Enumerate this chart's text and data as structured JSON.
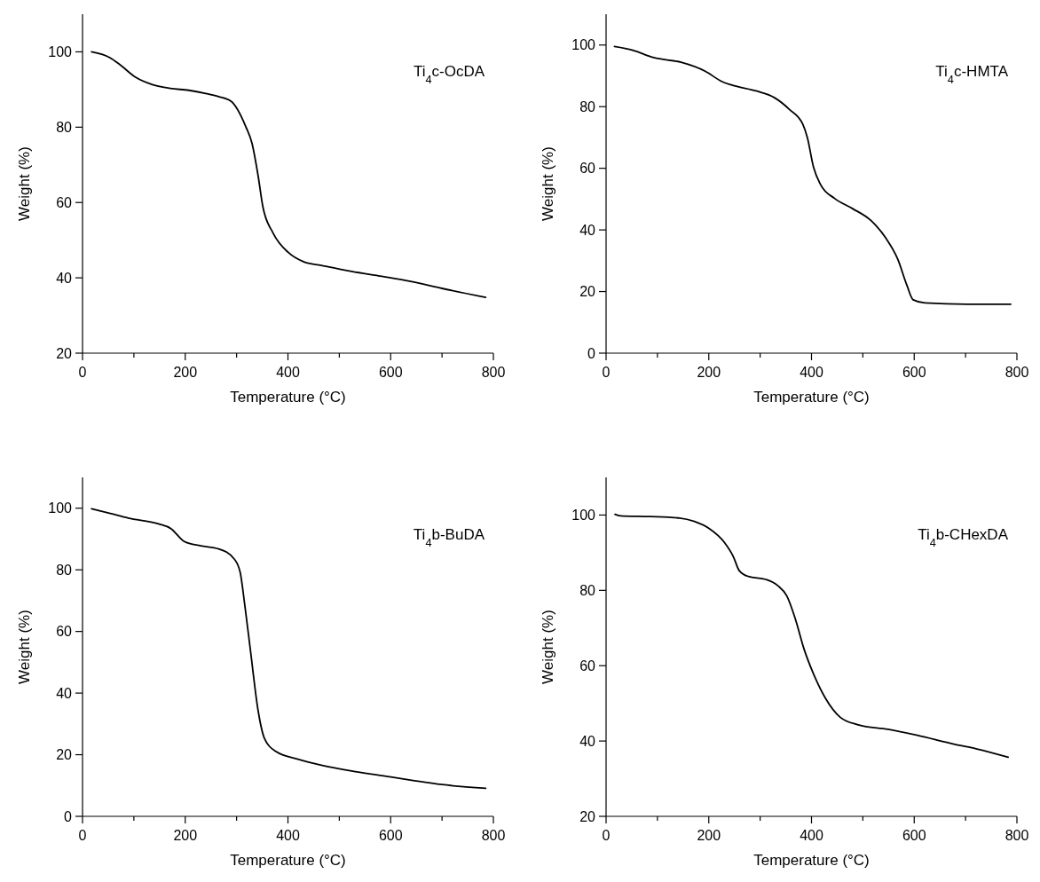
{
  "chart_data": [
    {
      "type": "line",
      "xlabel": "Temperature (°C)",
      "ylabel": "Weight (%)",
      "annotations": [
        "Ti$_{4}$c-OcDA"
      ],
      "xlim": [
        0,
        800
      ],
      "ylim": [
        20,
        110
      ],
      "xticks": [
        0,
        {
          "value": 100,
          "label": null
        },
        200,
        {
          "value": 300,
          "label": null
        },
        400,
        {
          "value": 500,
          "label": null
        },
        600,
        {
          "value": 700,
          "label": null
        },
        800
      ],
      "yticks": [
        20,
        40,
        60,
        80,
        100
      ],
      "series": [
        {
          "color": "#000000",
          "x": [
            17.6,
            54,
            71,
            104,
            136,
            171,
            207,
            242,
            265,
            289,
            318,
            330,
            342,
            351,
            371,
            401,
            430,
            465,
            524,
            583,
            641,
            700,
            785
          ],
          "values": [
            100,
            98.4,
            96.8,
            93.2,
            91.3,
            90.3,
            89.8,
            88.9,
            88.1,
            86.9,
            80.1,
            75.7,
            67,
            59,
            51.9,
            46.7,
            44.3,
            43.3,
            41.7,
            40.4,
            39,
            37.2,
            34.8
          ]
        }
      ]
    },
    {
      "type": "line",
      "xlabel": "Temperature (°C)",
      "ylabel": "Weight (%)",
      "annotations": [
        "Ti$_{4}$c-HMTA"
      ],
      "xlim": [
        0,
        800
      ],
      "ylim": [
        0,
        110
      ],
      "xticks": [
        0,
        {
          "value": 100,
          "label": null
        },
        200,
        {
          "value": 300,
          "label": null
        },
        400,
        {
          "value": 500,
          "label": null
        },
        600,
        {
          "value": 700,
          "label": null
        },
        800
      ],
      "yticks": [
        0,
        20,
        40,
        60,
        80,
        100
      ],
      "series": [
        {
          "color": "#000000",
          "x": [
            16.4,
            52,
            93,
            146,
            193,
            225,
            245,
            292,
            328,
            357,
            383,
            392,
            404,
            418,
            445,
            480,
            516,
            545,
            568,
            586,
            598,
            621,
            703,
            788
          ],
          "values": [
            99.5,
            98.3,
            95.9,
            94.4,
            91.5,
            88.2,
            87,
            85.1,
            82.9,
            79.1,
            74.3,
            69.9,
            60.3,
            54.6,
            50.2,
            46.9,
            43,
            37.3,
            30.5,
            21.9,
            17.3,
            16.3,
            15.9,
            15.9
          ]
        }
      ]
    },
    {
      "type": "line",
      "xlabel": "Temperature (°C)",
      "ylabel": "Weight (%)",
      "annotations": [
        "Ti$_{4}$b-BuDA"
      ],
      "xlim": [
        0,
        800
      ],
      "ylim": [
        0,
        110
      ],
      "xticks": [
        0,
        {
          "value": 100,
          "label": null
        },
        200,
        {
          "value": 300,
          "label": null
        },
        400,
        {
          "value": 500,
          "label": null
        },
        600,
        {
          "value": 700,
          "label": null
        },
        800
      ],
      "yticks": [
        0,
        20,
        40,
        60,
        80,
        100
      ],
      "series": [
        {
          "color": "#000000",
          "x": [
            17.6,
            54,
            89,
            148,
            172,
            198,
            230,
            265,
            295,
            307,
            316,
            327,
            342,
            354,
            377,
            418,
            465,
            524,
            583,
            641,
            700,
            785
          ],
          "values": [
            99.8,
            98.3,
            96.8,
            94.9,
            93.4,
            89.2,
            87.8,
            86.8,
            83.6,
            79.2,
            68.5,
            53.8,
            34.2,
            25.4,
            21,
            18.6,
            16.6,
            14.7,
            13.2,
            11.7,
            10.3,
            9.1
          ]
        }
      ]
    },
    {
      "type": "line",
      "xlabel": "Temperature (°C)",
      "ylabel": "Weight (%)",
      "annotations": [
        "Ti$_{4}$b-CHexDA"
      ],
      "xlim": [
        0,
        800
      ],
      "ylim": [
        20,
        110
      ],
      "xticks": [
        0,
        {
          "value": 100,
          "label": null
        },
        200,
        {
          "value": 300,
          "label": null
        },
        400,
        {
          "value": 500,
          "label": null
        },
        600,
        {
          "value": 700,
          "label": null
        },
        800
      ],
      "yticks": [
        20,
        40,
        60,
        80,
        100
      ],
      "series": [
        {
          "color": "#000000",
          "x": [
            17.4,
            28,
            86,
            143,
            172,
            201,
            230,
            248,
            259,
            277,
            311,
            334,
            352,
            369,
            386,
            404,
            427,
            456,
            491,
            549,
            606,
            679,
            722,
            783
          ],
          "values": [
            100.2,
            99.8,
            99.6,
            99.2,
            98.3,
            96.4,
            92.8,
            88.9,
            85.3,
            83.7,
            82.9,
            81.3,
            78.5,
            72.2,
            64.2,
            57.8,
            51.4,
            46.3,
            44.3,
            43.1,
            41.5,
            39.1,
            37.9,
            35.7
          ]
        }
      ]
    }
  ]
}
